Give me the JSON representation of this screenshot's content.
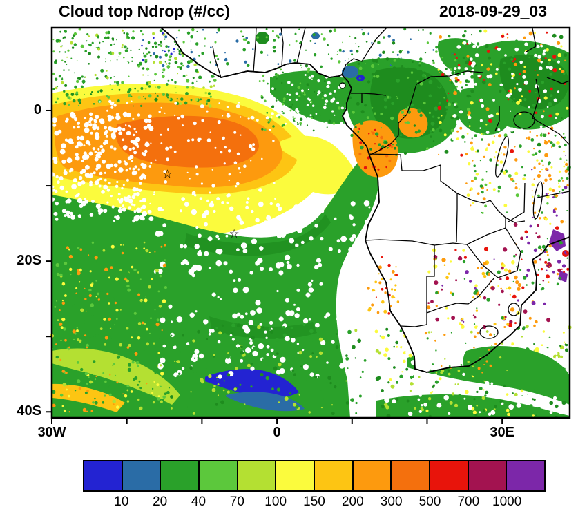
{
  "title": "Cloud top Ndrop (#/cc)",
  "timestamp": "2018-09-29_03",
  "axes": {
    "y_ticks": [
      {
        "label": "0",
        "lat": 0
      },
      {
        "label": "20S",
        "lat": -20
      },
      {
        "label": "40S",
        "lat": -40
      }
    ],
    "x_ticks": [
      {
        "label": "30W",
        "lon": -30
      },
      {
        "label": "0",
        "lon": 0
      },
      {
        "label": "30E",
        "lon": 30
      }
    ],
    "tick_interval_deg": 10
  },
  "palette": {
    "blue": "#2323d2",
    "steelblue": "#2a6ca6",
    "green": "#2aa12a",
    "midgreen": "#5cc83c",
    "yellowgreen": "#b4e032",
    "yellow": "#fbfb3d",
    "amber": "#fdc513",
    "orange": "#fd9a0e",
    "darkorange": "#f4700d",
    "red": "#e8140b",
    "maroon": "#a31350",
    "purple": "#7c27a9",
    "darkgreen": "#1e8c1e",
    "white": "#ffffff",
    "outline": "#000000"
  },
  "colorbar": {
    "labels": [
      "10",
      "20",
      "40",
      "70",
      "100",
      "150",
      "200",
      "300",
      "500",
      "700",
      "1000"
    ],
    "colors": [
      "#2323d2",
      "#2a6ca6",
      "#2aa12a",
      "#5cc83c",
      "#b4e032",
      "#fbfb3d",
      "#fdc513",
      "#fd9a0e",
      "#f4700d",
      "#e8140b",
      "#a31350",
      "#7c27a9"
    ]
  },
  "chart_data": {
    "type": "heatmap",
    "title": "Cloud top Ndrop (#/cc)",
    "variable": "cloud top droplet number concentration",
    "units": "#/cc",
    "timestamp": "2018-09-29_03",
    "projection": "lat-lon map over Africa and the tropical/South Atlantic",
    "extent": {
      "lon_min": -30,
      "lon_max": 39,
      "lat_min": -40.8,
      "lat_max": 11
    },
    "levels": [
      10,
      20,
      40,
      70,
      100,
      150,
      200,
      300,
      500,
      700,
      1000
    ],
    "level_colors": [
      "#2323d2",
      "#2a6ca6",
      "#2aa12a",
      "#5cc83c",
      "#b4e032",
      "#fbfb3d",
      "#fdc513",
      "#fd9a0e",
      "#f4700d",
      "#e8140b",
      "#a31350",
      "#7c27a9"
    ],
    "markers": [
      {
        "type": "star",
        "lon": -14.6,
        "lat": -8.4
      },
      {
        "type": "star",
        "lon": -5.7,
        "lat": -16.3
      }
    ],
    "regions": [
      {
        "area": "NE tropical Atlantic off West Africa (30W-5W, 8N-8S)",
        "ndrop_range": "150-300",
        "appearance": "orange band with amber/deep-orange core, yellow fringe"
      },
      {
        "area": "Far west Atlantic edge (30W-25W, 0-10S)",
        "ndrop_range": "150-300",
        "appearance": "speckled/dotted orange on white"
      },
      {
        "area": "Transition ring south/east of orange band",
        "ndrop_range": "70-150",
        "appearance": "yellow and yellow-green arc reaching toward African coast"
      },
      {
        "area": "South Atlantic stratocumulus deck (25W-10E, 8S-40S)",
        "ndrop_range": "20-70",
        "appearance": "broad green field with white cloud-free filaments"
      },
      {
        "area": "Gulf of Guinea / Congo basin (0E-25E, 6N-5S)",
        "ndrop_range": "20-70",
        "appearance": "dense green, darker green core"
      },
      {
        "area": "Angola/Congo coast (9E-15E, 3S-9S)",
        "ndrop_range": "200-300",
        "appearance": "orange patch with red specks"
      },
      {
        "area": "NE corner / East Africa (25E-39E, 11N-5S)",
        "ndrop_range": "20-100 with specks 150-500",
        "appearance": "green fields, scattered yellow/orange/red dots"
      },
      {
        "area": "Southern Africa interior (20E-35E, 10S-28S)",
        "ndrop_range": "mostly clear; specks 150-1000",
        "appearance": "white land with orange/red/purple speckles"
      },
      {
        "area": "Mozambique coast (33E-39E, 15S-25S)",
        "ndrop_range": "300-1000 specks",
        "appearance": "purple/red/maroon cluster near right edge"
      },
      {
        "area": "SW Atlantic (22W-12W, 34S-39S)",
        "ndrop_range": "<10-20",
        "appearance": "blue streak within green"
      },
      {
        "area": "Agulhas / SE coast (15E-39E, 30S-41S)",
        "ndrop_range": "20-70",
        "appearance": "green streaks mixed with white"
      }
    ],
    "legend_position": "bottom horizontal colorbar",
    "grid": false
  }
}
